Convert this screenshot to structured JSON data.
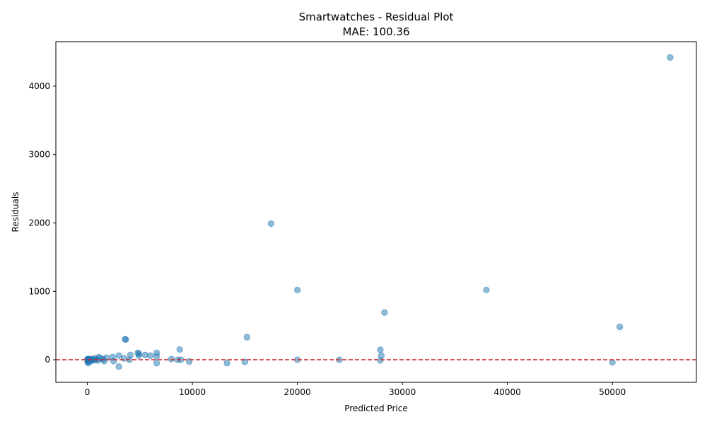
{
  "chart_data": {
    "type": "scatter",
    "title": "Smartwatches - Residual Plot",
    "subtitle": "MAE: 100.36",
    "xlabel": "Predicted Price",
    "ylabel": "Residuals",
    "xlim": [
      -3000,
      58000
    ],
    "ylim": [
      -330,
      4650
    ],
    "xticks": [
      0,
      10000,
      20000,
      30000,
      40000,
      50000
    ],
    "yticks": [
      0,
      1000,
      2000,
      3000,
      4000
    ],
    "reference_line": {
      "y": 0,
      "style": "dashed",
      "color": "#d62728"
    },
    "point_color": "#1f77b4",
    "points": [
      [
        55500,
        4420
      ],
      [
        17500,
        1990
      ],
      [
        20000,
        1020
      ],
      [
        38000,
        1020
      ],
      [
        28300,
        690
      ],
      [
        50700,
        480
      ],
      [
        15200,
        330
      ],
      [
        3600,
        300
      ],
      [
        3650,
        295
      ],
      [
        8800,
        150
      ],
      [
        27900,
        145
      ],
      [
        28000,
        60
      ],
      [
        27900,
        -10
      ],
      [
        24000,
        0
      ],
      [
        20000,
        0
      ],
      [
        50000,
        -40
      ],
      [
        15000,
        -30
      ],
      [
        13300,
        -50
      ],
      [
        9700,
        -25
      ],
      [
        8900,
        0
      ],
      [
        8600,
        0
      ],
      [
        8000,
        10
      ],
      [
        6600,
        100
      ],
      [
        6600,
        50
      ],
      [
        6600,
        -50
      ],
      [
        6000,
        60
      ],
      [
        5500,
        70
      ],
      [
        4900,
        90
      ],
      [
        4800,
        100
      ],
      [
        4900,
        60
      ],
      [
        4100,
        70
      ],
      [
        4000,
        0
      ],
      [
        3500,
        20
      ],
      [
        3000,
        60
      ],
      [
        3000,
        -100
      ],
      [
        2500,
        -20
      ],
      [
        2400,
        40
      ],
      [
        1800,
        30
      ],
      [
        1600,
        -20
      ],
      [
        1500,
        10
      ],
      [
        1200,
        20
      ],
      [
        1100,
        40
      ],
      [
        1000,
        -10
      ],
      [
        800,
        0
      ],
      [
        700,
        20
      ],
      [
        600,
        -10
      ],
      [
        500,
        10
      ],
      [
        400,
        0
      ],
      [
        300,
        -20
      ],
      [
        250,
        10
      ],
      [
        200,
        -10
      ],
      [
        150,
        0
      ],
      [
        100,
        -50
      ],
      [
        80,
        10
      ],
      [
        60,
        -20
      ],
      [
        50,
        0
      ],
      [
        40,
        10
      ],
      [
        30,
        -30
      ],
      [
        20,
        0
      ],
      [
        10,
        5
      ]
    ]
  }
}
